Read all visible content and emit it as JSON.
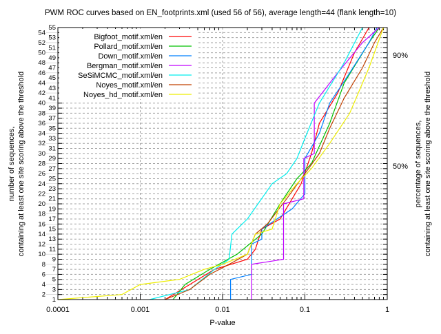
{
  "chart_data": {
    "type": "line",
    "title": "PWM ROC curves based on EN_footprints.xml (used 56 of 56), average length=44 (flank length=10)",
    "xlabel": "P-value",
    "ylabel_line1": "number of sequences,",
    "ylabel_line2": "containing at least one site scoring above the threshold",
    "y2label_line1": "percentage of sequences,",
    "y2label_line2": "containing at least one site scoring above the threshold",
    "xscale": "log",
    "xlim": [
      0.0001,
      1
    ],
    "ylim": [
      1,
      55
    ],
    "x_ticks": [
      {
        "v": 0.0001,
        "label": "0.0001"
      },
      {
        "v": 0.001,
        "label": "0.001"
      },
      {
        "v": 0.01,
        "label": "0.01"
      },
      {
        "v": 0.1,
        "label": "0.1"
      },
      {
        "v": 1,
        "label": "1"
      }
    ],
    "y2_ticks": [
      {
        "v": 27.5,
        "label": "50%"
      },
      {
        "v": 49.5,
        "label": "90%"
      }
    ],
    "grid": true,
    "legend_position": "top-left",
    "series": [
      {
        "name": "Bigfoot_motif.xml/en",
        "color": "#ff0000",
        "points": [
          [
            0.002,
            1
          ],
          [
            0.004,
            4
          ],
          [
            0.008,
            7
          ],
          [
            0.02,
            9
          ],
          [
            0.025,
            11
          ],
          [
            0.03,
            15
          ],
          [
            0.05,
            17
          ],
          [
            0.07,
            21
          ],
          [
            0.09,
            24
          ],
          [
            0.12,
            30
          ],
          [
            0.15,
            36
          ],
          [
            0.25,
            42
          ],
          [
            0.4,
            50
          ],
          [
            0.6,
            55
          ]
        ]
      },
      {
        "name": "Pollard_motif.xml/en",
        "color": "#00c000",
        "points": [
          [
            0.0025,
            1
          ],
          [
            0.0035,
            4
          ],
          [
            0.007,
            7
          ],
          [
            0.015,
            10
          ],
          [
            0.03,
            14
          ],
          [
            0.05,
            20
          ],
          [
            0.08,
            25
          ],
          [
            0.12,
            28
          ],
          [
            0.2,
            36
          ],
          [
            0.3,
            44
          ],
          [
            0.6,
            52
          ],
          [
            0.8,
            55
          ]
        ]
      },
      {
        "name": "Down_motif.xml/en",
        "color": "#0080ff",
        "points": [
          [
            0.0125,
            1
          ],
          [
            0.0125,
            5
          ],
          [
            0.0225,
            6
          ],
          [
            0.0225,
            12
          ],
          [
            0.03,
            13
          ],
          [
            0.03,
            15
          ],
          [
            0.07,
            19
          ],
          [
            0.1,
            22
          ],
          [
            0.1,
            29
          ],
          [
            0.15,
            34
          ],
          [
            0.2,
            40
          ],
          [
            0.35,
            46
          ],
          [
            0.6,
            52
          ],
          [
            0.75,
            55
          ]
        ]
      },
      {
        "name": "Bergman_motif.xml/en",
        "color": "#c000ff",
        "points": [
          [
            0.0225,
            1
          ],
          [
            0.0225,
            8
          ],
          [
            0.055,
            9
          ],
          [
            0.055,
            20
          ],
          [
            0.097,
            21
          ],
          [
            0.097,
            29
          ],
          [
            0.13,
            30
          ],
          [
            0.13,
            40
          ],
          [
            0.25,
            46
          ],
          [
            0.5,
            52
          ],
          [
            0.8,
            55
          ]
        ]
      },
      {
        "name": "SeSiMCMC_motif.xml/en",
        "color": "#00eeee",
        "points": [
          [
            0.0013,
            1
          ],
          [
            0.004,
            3
          ],
          [
            0.008,
            7
          ],
          [
            0.012,
            9
          ],
          [
            0.013,
            14
          ],
          [
            0.02,
            17
          ],
          [
            0.04,
            24
          ],
          [
            0.06,
            26
          ],
          [
            0.08,
            29
          ],
          [
            0.1,
            33
          ],
          [
            0.15,
            40
          ],
          [
            0.3,
            48
          ],
          [
            0.5,
            55
          ]
        ]
      },
      {
        "name": "Noyes_motif.xml/en",
        "color": "#c04000",
        "points": [
          [
            0.002,
            1
          ],
          [
            0.004,
            3
          ],
          [
            0.007,
            6
          ],
          [
            0.012,
            8
          ],
          [
            0.02,
            10
          ],
          [
            0.025,
            14
          ],
          [
            0.035,
            16
          ],
          [
            0.06,
            21
          ],
          [
            0.1,
            26
          ],
          [
            0.15,
            30
          ],
          [
            0.2,
            35
          ],
          [
            0.3,
            41
          ],
          [
            0.5,
            47
          ],
          [
            0.7,
            52
          ],
          [
            0.9,
            55
          ]
        ]
      },
      {
        "name": "Noyes_hd_motif.xml/en",
        "color": "#eeee00",
        "points": [
          [
            0.0001,
            1
          ],
          [
            0.0006,
            2
          ],
          [
            0.001,
            4
          ],
          [
            0.003,
            5
          ],
          [
            0.006,
            7
          ],
          [
            0.01,
            8
          ],
          [
            0.02,
            10
          ],
          [
            0.025,
            14
          ],
          [
            0.04,
            15
          ],
          [
            0.05,
            20
          ],
          [
            0.08,
            24
          ],
          [
            0.12,
            27
          ],
          [
            0.2,
            32
          ],
          [
            0.35,
            38
          ],
          [
            0.6,
            47
          ],
          [
            0.9,
            55
          ]
        ]
      }
    ]
  }
}
